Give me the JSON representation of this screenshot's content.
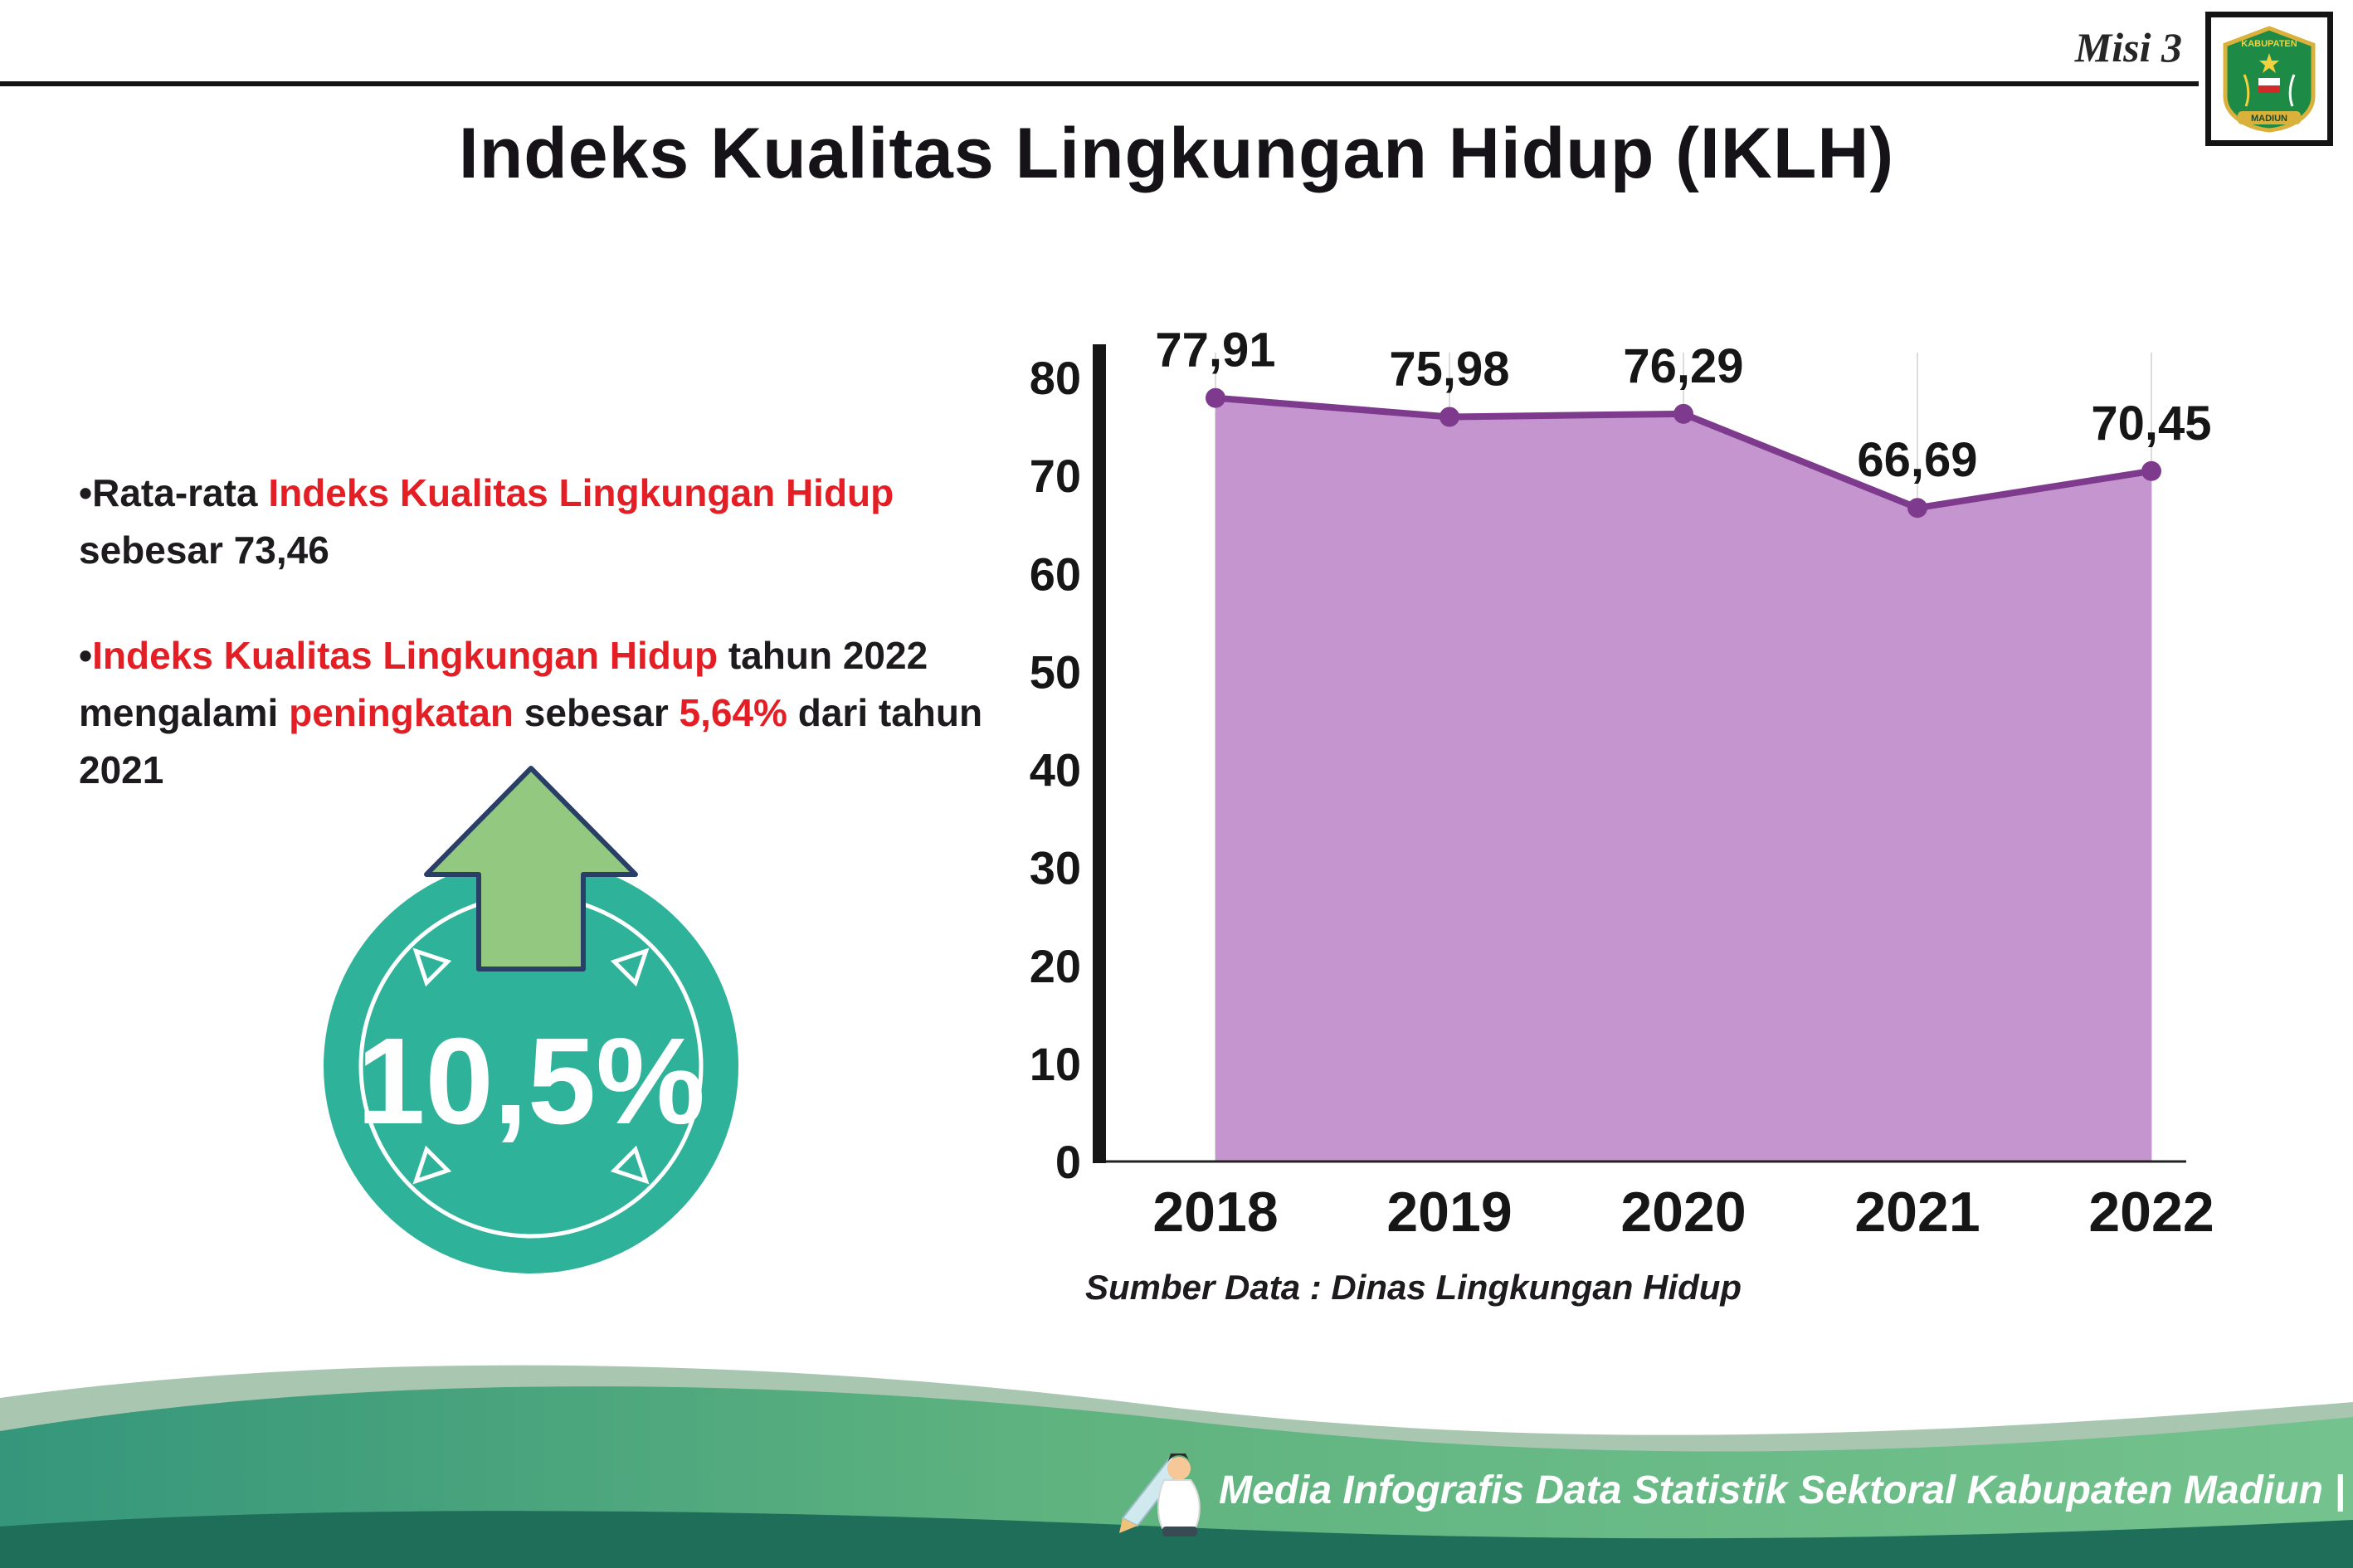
{
  "header": {
    "misi_label": "Misi 3",
    "title": "Indeks Kualitas Lingkungan Hidup (IKLH)",
    "logo": {
      "top_text": "KABUPATEN",
      "bottom_text": "MADIUN"
    }
  },
  "bullets": {
    "b1": {
      "bullet": "•",
      "pre": "Rata-rata ",
      "highlight": "Indeks Kualitas Lingkungan Hidup",
      "post": " sebesar 73,46"
    },
    "b2": {
      "bullet": "•",
      "h1": "Indeks Kualitas Lingkungan Hidup",
      "t1": " tahun 2022 mengalami ",
      "h2": "peningkatan",
      "t2": " sebesar ",
      "h3": "5,64%",
      "t3": " dari tahun 2021"
    }
  },
  "badge": {
    "value": "10,5%"
  },
  "chart_data": {
    "type": "area",
    "categories": [
      "2018",
      "2019",
      "2020",
      "2021",
      "2022"
    ],
    "values": [
      77.91,
      75.98,
      76.29,
      66.69,
      70.45
    ],
    "value_labels": [
      "77,91",
      "75,98",
      "76,29",
      "66,69",
      "70,45"
    ],
    "title": "",
    "xlabel": "",
    "ylabel": "",
    "ylim": [
      0,
      80
    ],
    "ytick_step": 10,
    "legend": "none",
    "grid": "vertical-light",
    "colors": {
      "fill": "#c495cf",
      "line": "#7e3a8c",
      "point": "#7e3a8c",
      "axis": "#161616"
    }
  },
  "source_note": "Sumber Data : Dinas Lingkungan Hidup",
  "footer": {
    "text": "Media Infografis Data Statistik Sektoral Kabupaten Madiun |"
  },
  "theme": {
    "badge_teal": "#2fb29a",
    "arrow_green": "#92c87f",
    "wave_dark": "#1e6e59"
  }
}
